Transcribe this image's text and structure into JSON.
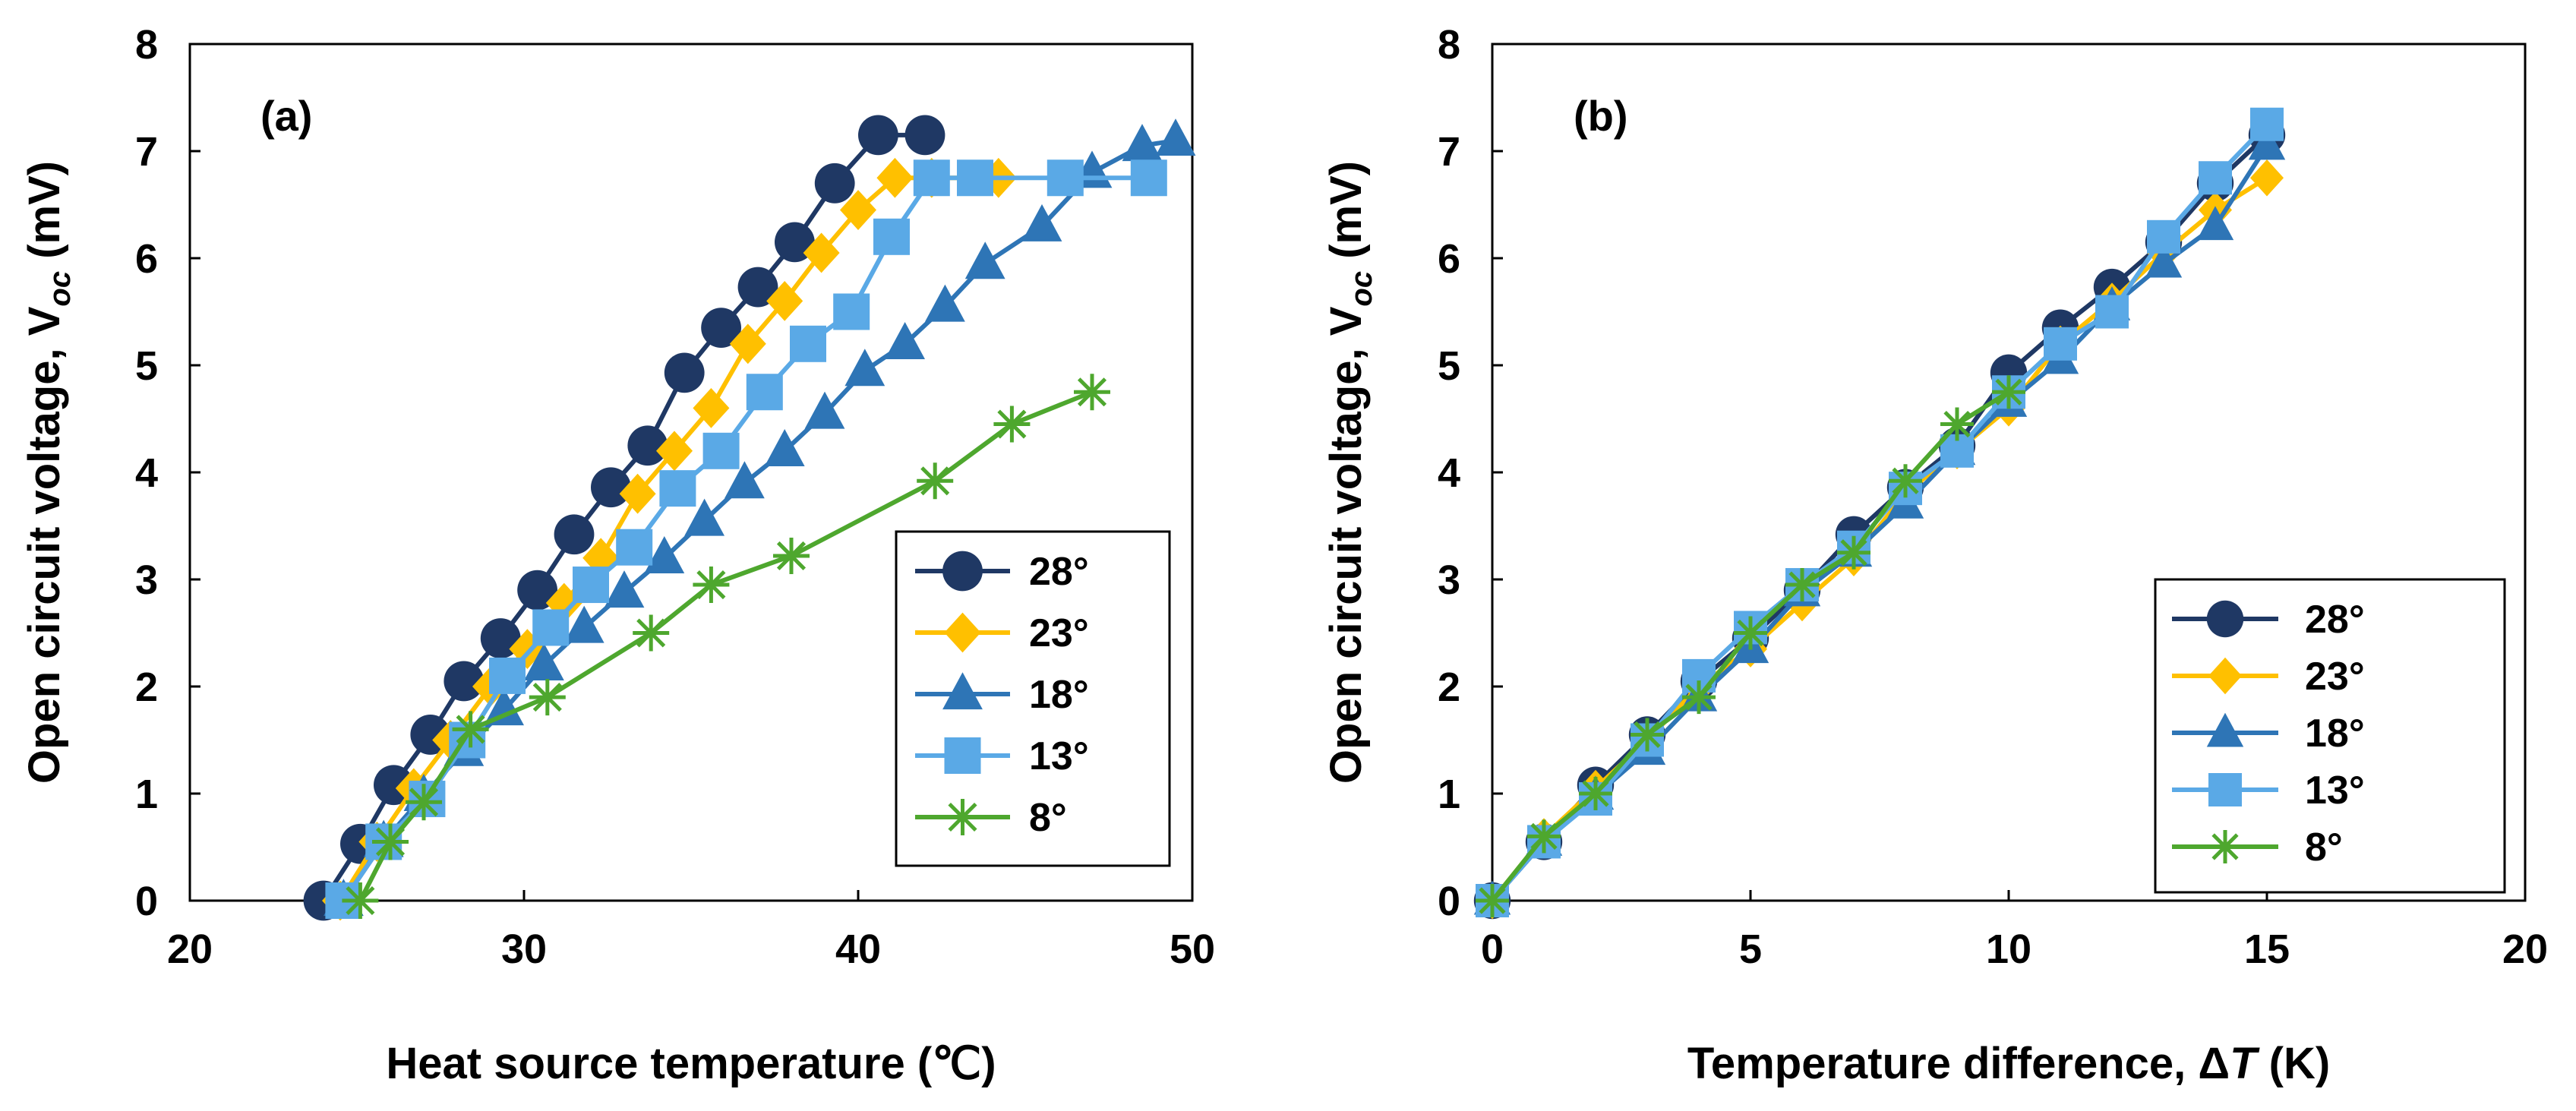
{
  "colors": {
    "28": "#1f3864",
    "23": "#ffc000",
    "18": "#2e75b6",
    "13": "#5aa9e6",
    "8": "#4ea72e"
  },
  "chart_data": [
    {
      "type": "line",
      "panel_label": "(a)",
      "xlabel": "Heat source temperature (℃)",
      "ylabel": "Open circuit voltage, V",
      "ylabel_sub": "oc",
      "ylabel_unit": " (mV)",
      "xlim": [
        20,
        50
      ],
      "ylim": [
        0,
        8
      ],
      "xticks": [
        20,
        30,
        40,
        50
      ],
      "yticks": [
        0,
        1,
        2,
        3,
        4,
        5,
        6,
        7,
        8
      ],
      "grid": false,
      "legend_position": "lower-right",
      "series": [
        {
          "name": "28°",
          "marker": "circle",
          "color_key": "28",
          "x": [
            24,
            25.1,
            26.1,
            27.2,
            28.2,
            29.3,
            30.4,
            31.5,
            32.6,
            33.7,
            34.8,
            35.9,
            37.0,
            38.1,
            39.3,
            40.6,
            42.0
          ],
          "y": [
            0,
            0.53,
            1.08,
            1.55,
            2.05,
            2.45,
            2.9,
            3.42,
            3.86,
            4.25,
            4.93,
            5.35,
            5.73,
            6.15,
            6.7,
            7.15,
            7.15
          ]
        },
        {
          "name": "23°",
          "marker": "diamond",
          "color_key": "23",
          "x": [
            24.5,
            25.6,
            26.7,
            27.8,
            29.0,
            30.1,
            31.2,
            32.3,
            33.4,
            34.5,
            35.6,
            36.7,
            37.8,
            38.9,
            40.0,
            41.1,
            42.2,
            44.2
          ],
          "y": [
            0,
            0.55,
            1.05,
            1.5,
            2.0,
            2.35,
            2.78,
            3.2,
            3.8,
            4.2,
            4.6,
            5.2,
            5.6,
            6.05,
            6.45,
            6.75,
            6.75,
            6.75
          ]
        },
        {
          "name": "18°",
          "marker": "triangle",
          "color_key": "18",
          "x": [
            24.6,
            25.8,
            27.0,
            28.2,
            29.4,
            30.6,
            31.8,
            33.0,
            34.2,
            35.4,
            36.6,
            37.8,
            39.0,
            40.2,
            41.4,
            42.6,
            43.8,
            45.5,
            47.0,
            48.5,
            49.5
          ],
          "y": [
            0,
            0.55,
            0.98,
            1.4,
            1.78,
            2.2,
            2.55,
            2.88,
            3.2,
            3.55,
            3.9,
            4.2,
            4.55,
            4.95,
            5.2,
            5.55,
            5.95,
            6.3,
            6.8,
            7.05,
            7.1
          ]
        },
        {
          "name": "13°",
          "marker": "square",
          "color_key": "13",
          "x": [
            24.6,
            25.8,
            27.1,
            28.3,
            29.5,
            30.8,
            32.0,
            33.3,
            34.6,
            35.9,
            37.2,
            38.5,
            39.8,
            41.0,
            42.2,
            43.5,
            46.2,
            48.7
          ],
          "y": [
            0,
            0.55,
            0.95,
            1.5,
            2.1,
            2.55,
            2.95,
            3.3,
            3.85,
            4.2,
            4.75,
            5.2,
            5.5,
            6.2,
            6.75,
            6.75,
            6.75,
            6.75
          ]
        },
        {
          "name": "8°",
          "marker": "star",
          "color_key": "8",
          "x": [
            25.1,
            26.0,
            27.0,
            28.4,
            30.7,
            33.8,
            35.6,
            38.0,
            42.3,
            44.6,
            47.0
          ],
          "y": [
            0,
            0.55,
            0.92,
            1.6,
            1.9,
            2.5,
            2.95,
            3.22,
            3.92,
            4.45,
            4.75
          ]
        }
      ]
    },
    {
      "type": "line",
      "panel_label": "(b)",
      "xlabel": "Temperature difference, ΔT (K)",
      "xlabel_pre": "Temperature difference, Δ",
      "xlabel_italic": "T",
      "xlabel_post": " (K)",
      "ylabel": "Open  circuit voltage, V",
      "ylabel_sub": "oc",
      "ylabel_unit": " (mV)",
      "xlim": [
        0,
        20
      ],
      "ylim": [
        0,
        8
      ],
      "xticks": [
        0,
        5,
        10,
        15,
        20
      ],
      "yticks": [
        0,
        1,
        2,
        3,
        4,
        5,
        6,
        7,
        8
      ],
      "grid": false,
      "legend_position": "lower-right",
      "series": [
        {
          "name": "28°",
          "marker": "circle",
          "color_key": "28",
          "x": [
            0,
            1,
            2,
            3,
            4,
            5,
            6,
            7,
            8,
            9,
            10,
            11,
            12,
            13,
            14,
            15
          ],
          "y": [
            0,
            0.55,
            1.08,
            1.55,
            2.05,
            2.45,
            2.9,
            3.42,
            3.86,
            4.25,
            4.93,
            5.35,
            5.73,
            6.15,
            6.7,
            7.15
          ]
        },
        {
          "name": "23°",
          "marker": "diamond",
          "color_key": "23",
          "x": [
            0,
            1,
            2,
            3,
            4,
            5,
            6,
            7,
            8,
            9,
            10,
            11,
            12,
            13,
            14,
            15
          ],
          "y": [
            0,
            0.6,
            1.05,
            1.5,
            2.0,
            2.35,
            2.78,
            3.2,
            3.8,
            4.2,
            4.6,
            5.2,
            5.6,
            6.05,
            6.45,
            6.75
          ]
        },
        {
          "name": "18°",
          "marker": "triangle",
          "color_key": "18",
          "x": [
            0,
            1,
            2,
            3,
            4,
            5,
            6,
            7,
            8,
            9,
            10,
            11,
            12,
            13,
            14,
            15
          ],
          "y": [
            0,
            0.55,
            0.98,
            1.4,
            1.9,
            2.35,
            2.88,
            3.25,
            3.7,
            4.2,
            4.65,
            5.05,
            5.55,
            5.95,
            6.3,
            7.05
          ]
        },
        {
          "name": "13°",
          "marker": "square",
          "color_key": "13",
          "x": [
            0,
            1,
            2,
            3,
            4,
            5,
            6,
            7,
            8,
            9,
            10,
            11,
            12,
            13,
            14,
            15
          ],
          "y": [
            0,
            0.55,
            0.95,
            1.5,
            2.1,
            2.55,
            2.95,
            3.3,
            3.85,
            4.2,
            4.75,
            5.2,
            5.5,
            6.2,
            6.75,
            7.25
          ]
        },
        {
          "name": "8°",
          "marker": "star",
          "color_key": "8",
          "x": [
            0,
            1,
            2,
            3,
            4,
            5,
            6,
            7,
            8,
            9,
            10
          ],
          "y": [
            0,
            0.6,
            1.0,
            1.55,
            1.9,
            2.5,
            2.95,
            3.25,
            3.92,
            4.45,
            4.75
          ]
        }
      ]
    }
  ]
}
